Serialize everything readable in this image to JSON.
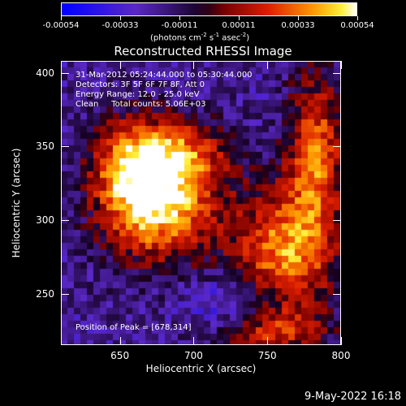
{
  "colorbar": {
    "tick_labels": [
      "-0.00054",
      "-0.00033",
      "-0.00011",
      "0.00011",
      "0.00033",
      "0.00054"
    ],
    "units_text": "(photons cm",
    "units_exp1": "-2",
    "units_mid": " s",
    "units_exp2": "-1",
    "units_mid2": " asec",
    "units_exp3": "-2",
    "units_end": ")"
  },
  "title": "Reconstructed RHESSI Image",
  "annotations": {
    "time": "31-Mar-2012 05:24:44.000 to 05:30:44.000",
    "detectors": "Detectors: 3F 5F 6F 7F 8F, Att 0",
    "energy": "Energy Range: 12.0 - 25.0 keV",
    "clean": "Clean     Total counts: 5.06E+03",
    "peak": "Position of Peak = [678,314]"
  },
  "axes": {
    "xlabel": "Heliocentric X (arcsec)",
    "ylabel": "Heliocentric Y (arcsec)",
    "x_ticks": [
      "650",
      "700",
      "750",
      "800"
    ],
    "y_ticks": [
      "400",
      "350",
      "300",
      "250"
    ],
    "x_range": [
      610,
      800
    ],
    "y_range": [
      215,
      408
    ]
  },
  "timestamp": "9-May-2022 16:18"
}
